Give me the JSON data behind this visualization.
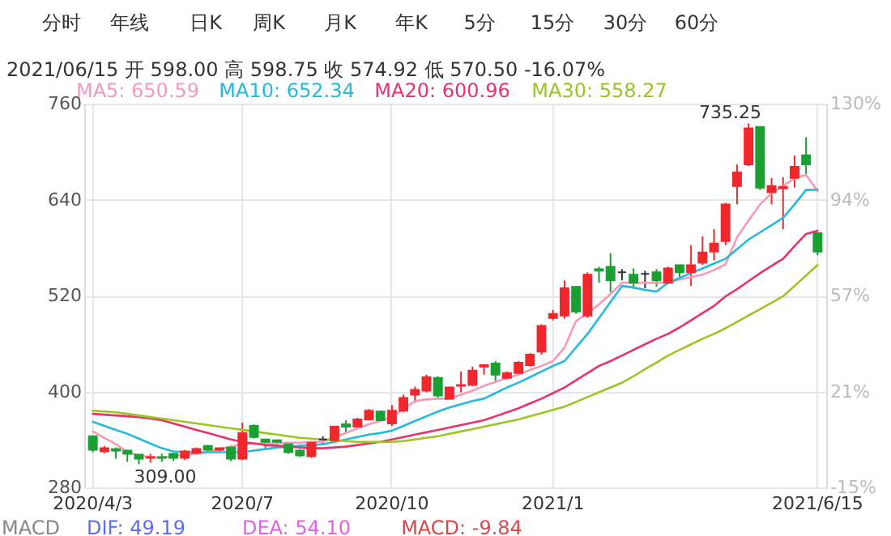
{
  "chart_data": {
    "type": "candlestick",
    "categories": [
      "2020/4/3",
      null,
      null,
      null,
      null,
      null,
      null,
      null,
      null,
      null,
      null,
      null,
      null,
      "2020/7",
      null,
      null,
      null,
      null,
      null,
      null,
      null,
      null,
      null,
      null,
      null,
      null,
      "2020/10",
      null,
      null,
      null,
      null,
      null,
      null,
      null,
      null,
      null,
      null,
      null,
      null,
      null,
      "2021/1",
      null,
      null,
      null,
      null,
      null,
      null,
      null,
      null,
      null,
      null,
      null,
      null,
      null,
      null,
      null,
      null,
      null,
      null,
      null,
      null,
      null,
      null,
      "2021/6/15"
    ],
    "ohlc": [
      [
        344,
        345,
        324,
        327
      ],
      [
        325,
        332,
        323,
        329
      ],
      [
        328,
        330,
        316,
        326
      ],
      [
        326,
        327,
        312,
        322
      ],
      [
        321,
        321,
        309,
        316
      ],
      [
        317,
        322,
        311,
        318
      ],
      [
        318,
        322,
        312,
        317
      ],
      [
        322,
        323,
        313,
        317
      ],
      [
        317,
        327,
        314,
        325
      ],
      [
        323,
        330,
        322,
        328
      ],
      [
        332,
        333,
        324,
        327
      ],
      [
        327,
        330,
        325,
        329
      ],
      [
        330,
        332,
        313,
        316
      ],
      [
        316,
        361,
        314,
        348
      ],
      [
        357,
        359,
        341,
        343
      ],
      [
        340,
        340,
        328,
        337
      ],
      [
        339,
        340,
        331,
        337
      ],
      [
        334,
        336,
        322,
        324
      ],
      [
        326,
        328,
        318,
        320
      ],
      [
        319,
        338,
        317,
        336
      ],
      [
        340,
        344,
        334,
        340
      ],
      [
        339,
        356,
        337,
        356
      ],
      [
        359,
        364,
        349,
        356
      ],
      [
        356,
        367,
        355,
        365
      ],
      [
        365,
        378,
        364,
        376
      ],
      [
        375,
        376,
        363,
        364
      ],
      [
        360,
        383,
        357,
        376
      ],
      [
        376,
        396,
        374,
        392
      ],
      [
        396,
        406,
        386,
        402
      ],
      [
        401,
        421,
        399,
        418
      ],
      [
        417,
        419,
        391,
        395
      ],
      [
        391,
        406,
        390,
        405
      ],
      [
        407,
        425,
        399,
        408
      ],
      [
        408,
        431,
        407,
        426
      ],
      [
        431,
        433,
        421,
        433
      ],
      [
        435,
        438,
        413,
        421
      ],
      [
        417,
        425,
        415,
        423
      ],
      [
        423,
        438,
        421,
        436
      ],
      [
        433,
        448,
        431,
        446
      ],
      [
        450,
        484,
        446,
        482
      ],
      [
        492,
        502,
        489,
        497
      ],
      [
        495,
        539,
        491,
        529
      ],
      [
        531,
        532,
        497,
        500
      ],
      [
        495,
        549,
        492,
        546
      ],
      [
        553,
        556,
        536,
        551
      ],
      [
        556,
        573,
        524,
        539
      ],
      [
        549,
        553,
        539,
        549
      ],
      [
        546,
        554,
        529,
        536
      ],
      [
        547,
        551,
        529,
        547
      ],
      [
        549,
        553,
        531,
        539
      ],
      [
        536,
        556,
        534,
        554
      ],
      [
        558,
        558,
        543,
        549
      ],
      [
        549,
        583,
        532,
        558
      ],
      [
        561,
        594,
        558,
        574
      ],
      [
        575,
        603,
        564,
        585
      ],
      [
        588,
        636,
        583,
        634
      ],
      [
        657,
        684,
        634,
        674
      ],
      [
        684,
        735.25,
        682,
        729
      ],
      [
        731,
        731,
        652,
        655
      ],
      [
        649,
        667,
        634,
        657
      ],
      [
        654,
        668,
        603,
        656
      ],
      [
        667,
        695,
        655,
        681
      ],
      [
        695.5,
        718,
        669,
        684
      ],
      [
        598,
        598.75,
        570.5,
        574.92
      ]
    ],
    "colors": [
      "#1aa032",
      "#f0282d",
      "#1aa032",
      "#1aa032",
      "#1aa032",
      "#f0282d",
      "#1aa032",
      "#1aa032",
      "#f0282d",
      "#f0282d",
      "#1aa032",
      "#f0282d",
      "#1aa032",
      "#f0282d",
      "#1aa032",
      "#1aa032",
      "#1aa032",
      "#1aa032",
      "#1aa032",
      "#f0282d",
      "#333333",
      "#f0282d",
      "#1aa032",
      "#f0282d",
      "#f0282d",
      "#1aa032",
      "#f0282d",
      "#f0282d",
      "#f0282d",
      "#f0282d",
      "#1aa032",
      "#f0282d",
      "#f0282d",
      "#f0282d",
      "#f0282d",
      "#1aa032",
      "#f0282d",
      "#f0282d",
      "#f0282d",
      "#f0282d",
      "#f0282d",
      "#f0282d",
      "#1aa032",
      "#f0282d",
      "#1aa032",
      "#1aa032",
      "#333333",
      "#1aa032",
      "#333333",
      "#1aa032",
      "#f0282d",
      "#1aa032",
      "#f0282d",
      "#f0282d",
      "#f0282d",
      "#f0282d",
      "#f0282d",
      "#f0282d",
      "#1aa032",
      "#f0282d",
      "#f0282d",
      "#f0282d",
      "#1aa032",
      "#1aa032"
    ],
    "series": [
      {
        "name": "MA5: 650.59",
        "type": "line",
        "color": "#f79ab5",
        "values": [
          350,
          342,
          334,
          324,
          320,
          318,
          317,
          319,
          321,
          322,
          324,
          328,
          331,
          334,
          335,
          335,
          335,
          336,
          336,
          337,
          337,
          343,
          348,
          354,
          359,
          363,
          368,
          378,
          388,
          390,
          391,
          391,
          396,
          401,
          407,
          412,
          417,
          421,
          427,
          432,
          438,
          455,
          488,
          498,
          509,
          522,
          536,
          536,
          536,
          536,
          536,
          540,
          543,
          546,
          552,
          559,
          593,
          614,
          634,
          648,
          657,
          667,
          671,
          650.59
        ]
      },
      {
        "name": "MA10: 652.34",
        "type": "line",
        "color": "#27b8e0",
        "values": [
          362,
          357,
          352,
          347,
          341,
          335,
          329,
          325,
          324,
          324,
          324,
          324,
          324,
          324,
          326,
          328,
          330,
          331,
          332,
          333,
          334,
          337,
          340,
          343,
          346,
          348,
          351,
          357,
          363,
          369,
          375,
          380,
          384,
          388,
          391,
          398,
          405,
          411,
          418,
          425,
          432,
          438,
          455,
          472,
          492,
          512,
          532,
          530,
          527,
          525,
          536,
          542,
          548,
          554,
          560,
          566,
          578,
          590,
          599,
          608,
          617,
          634,
          652,
          652.34
        ]
      },
      {
        "name": "MA20: 600.96",
        "type": "line",
        "color": "#e8336a",
        "values": [
          372,
          371,
          370,
          369,
          368,
          366,
          364,
          360,
          356,
          352,
          348,
          344,
          340,
          337,
          335,
          333,
          332,
          331,
          330,
          329,
          329,
          330,
          331,
          333,
          335,
          337,
          340,
          343,
          346,
          349,
          352,
          355,
          358,
          361,
          364,
          369,
          374,
          379,
          385,
          391,
          398,
          405,
          414,
          423,
          432,
          438,
          445,
          452,
          459,
          466,
          472,
          480,
          489,
          498,
          507,
          519,
          528,
          538,
          548,
          557,
          566,
          582,
          597,
          600.96
        ]
      },
      {
        "name": "MA30: 558.27",
        "type": "line",
        "color": "#9bc424",
        "values": [
          376,
          375,
          374,
          372,
          370,
          368,
          366,
          364,
          362,
          360,
          358,
          356,
          354,
          352,
          350,
          348,
          346,
          344,
          342,
          341,
          340,
          339,
          338,
          337,
          337,
          337,
          337,
          338,
          340,
          342,
          344,
          347,
          350,
          353,
          356,
          359,
          362,
          365,
          369,
          373,
          377,
          381,
          387,
          393,
          399,
          405,
          411,
          419,
          428,
          436,
          445,
          452,
          459,
          466,
          472,
          479,
          487,
          495,
          503,
          511,
          519,
          532,
          545,
          558.27
        ]
      }
    ],
    "ylim": [
      280,
      760
    ],
    "yticks": [
      280,
      400,
      520,
      640,
      760
    ],
    "y2lim": [
      -15,
      130
    ],
    "y2ticks": [
      {
        "value": -15,
        "label": "-15%"
      },
      {
        "value": 21.25,
        "label": "21%"
      },
      {
        "value": 57.5,
        "label": "57%"
      },
      {
        "value": 93.75,
        "label": "94%"
      },
      {
        "value": 130,
        "label": "130%"
      }
    ],
    "grid": true,
    "legend": "top left",
    "annotations": [
      "分时",
      "年线",
      "日K",
      "周K",
      "月K",
      "年K",
      "5分",
      "15分",
      "30分",
      "60分",
      "2021/06/15 开 598.00 高 598.75 收 574.92 低 570.50 -16.07%",
      "MACD",
      "DIF: 49.19",
      "DEA: 54.10",
      "MACD: -9.84",
      "735.25",
      "309.00"
    ]
  }
}
